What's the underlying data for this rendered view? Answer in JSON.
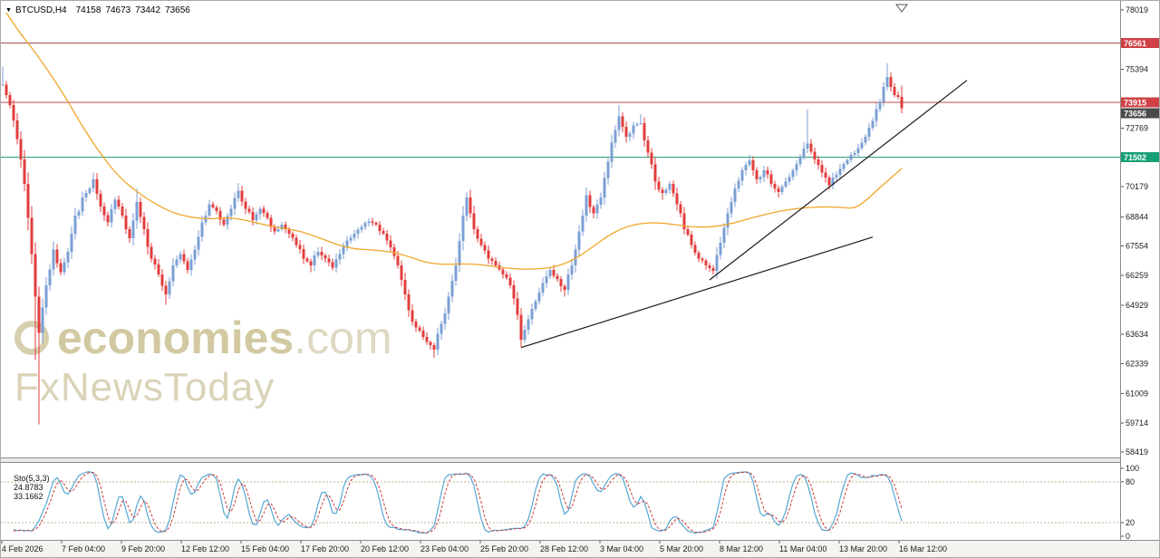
{
  "header": {
    "dropdown_icon": "▼",
    "symbol_period": "BTCUSD,H4",
    "open": "74158",
    "high": "74673",
    "low": "73442",
    "close": "73656"
  },
  "watermark": {
    "brand_bold": "economies",
    "brand_light": ".com",
    "line2": "FxNewsToday"
  },
  "indicator_panel": {
    "label": "Sto(5,3,3)",
    "main_value": "24.8783",
    "signal_value": "33.1662",
    "axis_labels": [
      100,
      80,
      20,
      0
    ],
    "levels": [
      80,
      20
    ],
    "main_color": "#57a7d4",
    "signal_color": "#cc3b3b",
    "level_color": "#bdb493"
  },
  "time_axis": {
    "labels": [
      "4 Feb 2026",
      "7 Feb 04:00",
      "9 Feb 20:00",
      "12 Feb 12:00",
      "15 Feb 04:00",
      "17 Feb 20:00",
      "20 Feb 12:00",
      "23 Feb 04:00",
      "25 Feb 20:00",
      "28 Feb 12:00",
      "3 Mar 04:00",
      "5 Mar 20:00",
      "8 Mar 12:00",
      "11 Mar 04:00",
      "13 Mar 20:00",
      "16 Mar 12:00"
    ]
  },
  "chart_data": {
    "type": "candlestick",
    "symbol": "BTCUSD",
    "timeframe": "H4",
    "last_quote": {
      "open": 74158,
      "high": 74673,
      "low": 73442,
      "close": 73656
    },
    "y_axis": {
      "min": 58419,
      "max": 78019,
      "ticks": [
        78019,
        75394,
        72769,
        70179,
        68844,
        67554,
        66259,
        64929,
        63634,
        62339,
        61009,
        59714,
        58419
      ]
    },
    "h_lines": [
      {
        "price": 76561,
        "color": "#a34d4d"
      },
      {
        "price": 73915,
        "color": "#c64949"
      },
      {
        "price": 71502,
        "color": "#2ba07a"
      }
    ],
    "price_badges": [
      {
        "value": 76561,
        "color": "#cf4146"
      },
      {
        "value": 73915,
        "color": "#cf4146"
      },
      {
        "value": 73656,
        "color": "#4a4a4a"
      },
      {
        "value": 71502,
        "color": "#169f78"
      }
    ],
    "trendlines": [
      {
        "from": [
          143,
          63050
        ],
        "to": [
          240,
          67950
        ],
        "color": "#1a1a1a"
      },
      {
        "from": [
          195,
          66050
        ],
        "to": [
          266,
          74900
        ],
        "color": "#1a1a1a"
      }
    ],
    "ma": {
      "color": "#efa52a",
      "points": [
        [
          1,
          77900
        ],
        [
          4,
          77150
        ],
        [
          8,
          76350
        ],
        [
          12,
          75450
        ],
        [
          17,
          74240
        ],
        [
          22,
          72840
        ],
        [
          27,
          71630
        ],
        [
          32,
          70630
        ],
        [
          37,
          69950
        ],
        [
          42,
          69420
        ],
        [
          47,
          69020
        ],
        [
          52,
          68820
        ],
        [
          57,
          68740
        ],
        [
          62,
          68820
        ],
        [
          67,
          68700
        ],
        [
          72,
          68500
        ],
        [
          77,
          68340
        ],
        [
          82,
          68220
        ],
        [
          87,
          67940
        ],
        [
          92,
          67620
        ],
        [
          97,
          67420
        ],
        [
          102,
          67380
        ],
        [
          107,
          67300
        ],
        [
          112,
          67090
        ],
        [
          117,
          66810
        ],
        [
          122,
          66730
        ],
        [
          127,
          66770
        ],
        [
          132,
          66730
        ],
        [
          137,
          66610
        ],
        [
          142,
          66530
        ],
        [
          147,
          66530
        ],
        [
          152,
          66610
        ],
        [
          157,
          66890
        ],
        [
          162,
          67420
        ],
        [
          167,
          68020
        ],
        [
          172,
          68420
        ],
        [
          177,
          68580
        ],
        [
          182,
          68580
        ],
        [
          187,
          68460
        ],
        [
          192,
          68380
        ],
        [
          197,
          68420
        ],
        [
          202,
          68580
        ],
        [
          207,
          68820
        ],
        [
          212,
          69020
        ],
        [
          217,
          69180
        ],
        [
          222,
          69260
        ],
        [
          227,
          69300
        ],
        [
          232,
          69260
        ],
        [
          235,
          69220
        ],
        [
          238,
          69540
        ],
        [
          242,
          70150
        ],
        [
          246,
          70710
        ],
        [
          248,
          70990
        ]
      ]
    },
    "stochastic": {
      "params": [
        5,
        3,
        3
      ],
      "last_main": 24.8783,
      "last_signal": 33.1662,
      "derived_from_candles": true
    },
    "candles": {
      "up_color": "#7b9fd4",
      "down_color": "#e23d3d",
      "path": [
        [
          0,
          74700,
          75500,
          null
        ],
        [
          2,
          73800
        ],
        [
          4,
          72300
        ],
        [
          6,
          70300
        ],
        [
          8,
          67200
        ],
        [
          9,
          65300,
          null,
          62500
        ],
        [
          10,
          63700,
          null,
          59650
        ],
        [
          12,
          65800
        ],
        [
          14,
          67400
        ],
        [
          16,
          66400
        ],
        [
          18,
          67300
        ],
        [
          20,
          68900
        ],
        [
          23,
          69900
        ],
        [
          25,
          70500,
          70800,
          null
        ],
        [
          27,
          69300
        ],
        [
          29,
          68600
        ],
        [
          31,
          69600
        ],
        [
          33,
          68900
        ],
        [
          35,
          67900
        ],
        [
          37,
          69500,
          70100,
          null
        ],
        [
          39,
          68300
        ],
        [
          41,
          67000
        ],
        [
          43,
          66300
        ],
        [
          45,
          65400,
          null,
          64950
        ],
        [
          47,
          66700
        ],
        [
          49,
          67200
        ],
        [
          51,
          66500
        ],
        [
          53,
          67400
        ],
        [
          55,
          68600
        ],
        [
          57,
          69400
        ],
        [
          59,
          69100
        ],
        [
          61,
          68500
        ],
        [
          63,
          69200
        ],
        [
          65,
          70000,
          70350,
          null
        ],
        [
          67,
          69200
        ],
        [
          69,
          68700
        ],
        [
          71,
          69200
        ],
        [
          73,
          68800
        ],
        [
          75,
          68200
        ],
        [
          77,
          68500
        ],
        [
          79,
          68100
        ],
        [
          81,
          67600
        ],
        [
          83,
          67000
        ],
        [
          85,
          66700,
          null,
          66400
        ],
        [
          87,
          67300
        ],
        [
          89,
          67000
        ],
        [
          91,
          66600
        ],
        [
          93,
          67200
        ],
        [
          95,
          67800
        ],
        [
          97,
          68100
        ],
        [
          99,
          68400
        ],
        [
          101,
          68650
        ],
        [
          103,
          68500
        ],
        [
          105,
          68100
        ],
        [
          107,
          67500
        ],
        [
          109,
          66700
        ],
        [
          111,
          65400
        ],
        [
          113,
          64200
        ],
        [
          115,
          63800
        ],
        [
          117,
          63300
        ],
        [
          119,
          62950,
          null,
          62600
        ],
        [
          121,
          64100
        ],
        [
          123,
          65300
        ],
        [
          125,
          66700
        ],
        [
          127,
          68900
        ],
        [
          128,
          69700,
          69950,
          null
        ],
        [
          130,
          68300
        ],
        [
          132,
          67600
        ],
        [
          134,
          67000
        ],
        [
          136,
          66700
        ],
        [
          138,
          66300
        ],
        [
          140,
          65800
        ],
        [
          142,
          64500
        ],
        [
          143,
          63400,
          null,
          63050
        ],
        [
          145,
          64300
        ],
        [
          147,
          65100
        ],
        [
          149,
          65900
        ],
        [
          151,
          66500
        ],
        [
          153,
          66100
        ],
        [
          155,
          65600,
          null,
          65300
        ],
        [
          157,
          66700
        ],
        [
          159,
          68200
        ],
        [
          161,
          69800,
          70150,
          null
        ],
        [
          163,
          69000
        ],
        [
          165,
          69700
        ],
        [
          167,
          71300
        ],
        [
          169,
          72700
        ],
        [
          170,
          73300,
          73800,
          null
        ],
        [
          172,
          72400
        ],
        [
          174,
          72900
        ],
        [
          176,
          73000,
          73400,
          null
        ],
        [
          178,
          71700
        ],
        [
          180,
          70400
        ],
        [
          182,
          69900,
          null,
          69600
        ],
        [
          184,
          70300
        ],
        [
          186,
          69400
        ],
        [
          188,
          68300
        ],
        [
          190,
          67600
        ],
        [
          192,
          67000
        ],
        [
          194,
          66700
        ],
        [
          196,
          66450,
          null,
          66300
        ],
        [
          198,
          67700
        ],
        [
          200,
          69000
        ],
        [
          202,
          70100
        ],
        [
          204,
          70900
        ],
        [
          206,
          71350,
          71600,
          null
        ],
        [
          208,
          70500
        ],
        [
          210,
          70900
        ],
        [
          212,
          70300
        ],
        [
          214,
          69950,
          null,
          69700
        ],
        [
          216,
          70400
        ],
        [
          218,
          70900
        ],
        [
          220,
          71500
        ],
        [
          222,
          72100,
          73600,
          null
        ],
        [
          224,
          71400
        ],
        [
          226,
          70800
        ],
        [
          228,
          70250,
          null,
          70050
        ],
        [
          230,
          70700
        ],
        [
          232,
          71200
        ],
        [
          234,
          71600
        ],
        [
          236,
          71900
        ],
        [
          238,
          72400
        ],
        [
          240,
          73100
        ],
        [
          242,
          73950
        ],
        [
          244,
          75050,
          75650,
          null
        ],
        [
          245,
          74600
        ],
        [
          246,
          74250
        ],
        [
          247,
          74158
        ],
        [
          248,
          73656,
          74673,
          73442
        ]
      ]
    }
  }
}
